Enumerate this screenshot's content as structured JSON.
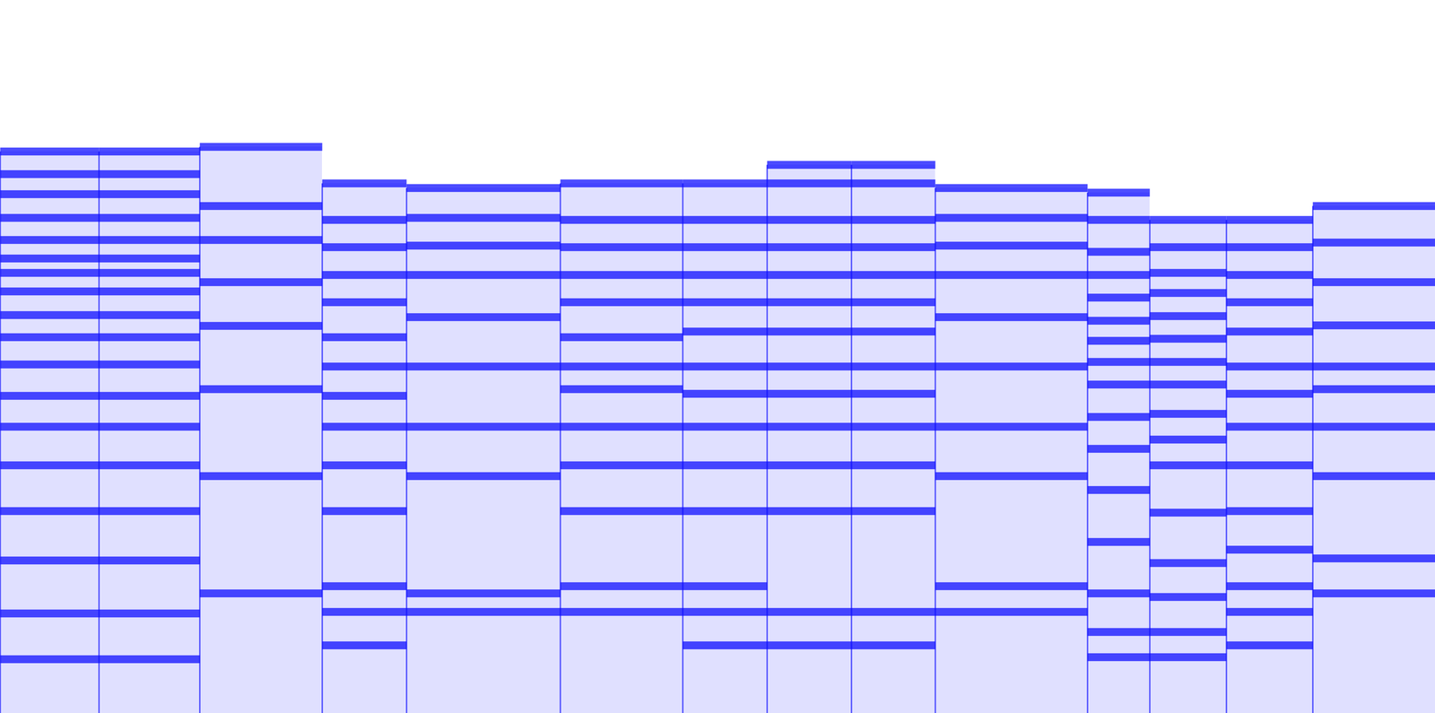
{
  "chart_data": {
    "type": "spectrogram",
    "xlim": [
      0,
      1568
    ],
    "ylim": [
      0,
      779
    ],
    "tick_labels": false,
    "color": "#0000ff",
    "notes": [
      {
        "start": 0,
        "end": 108,
        "partials": [
          59,
          109,
          167,
          221,
          271,
          313,
          347,
          381,
          411,
          435,
          461,
          481,
          497,
          517,
          541,
          567,
          589,
          614
        ]
      },
      {
        "start": 108,
        "end": 218,
        "partials": [
          59,
          109,
          167,
          221,
          271,
          313,
          347,
          381,
          411,
          435,
          461,
          481,
          497,
          517,
          541,
          567,
          589,
          614
        ]
      },
      {
        "start": 218,
        "end": 352,
        "partials": [
          131,
          259,
          354,
          423,
          471,
          517,
          554,
          619
        ]
      },
      {
        "start": 352,
        "end": 444,
        "partials": [
          74,
          111,
          139,
          221,
          271,
          313,
          347,
          379,
          411,
          449,
          479,
          509,
          539,
          579
        ]
      },
      {
        "start": 444,
        "end": 612,
        "partials": [
          111,
          131,
          259,
          313,
          379,
          433,
          479,
          511,
          541,
          574
        ]
      },
      {
        "start": 612,
        "end": 746,
        "partials": [
          111,
          139,
          221,
          271,
          313,
          354,
          379,
          411,
          449,
          479,
          509,
          539,
          579
        ]
      },
      {
        "start": 746,
        "end": 838,
        "partials": [
          74,
          111,
          139,
          221,
          271,
          313,
          349,
          379,
          417,
          449,
          479,
          509,
          539,
          579
        ]
      },
      {
        "start": 838,
        "end": 930,
        "partials": [
          74,
          111,
          221,
          271,
          313,
          349,
          379,
          417,
          449,
          479,
          509,
          539,
          579,
          599
        ]
      },
      {
        "start": 930,
        "end": 1022,
        "partials": [
          74,
          111,
          221,
          271,
          313,
          349,
          379,
          417,
          449,
          479,
          509,
          539,
          579,
          599
        ]
      },
      {
        "start": 1022,
        "end": 1188,
        "partials": [
          111,
          139,
          259,
          313,
          379,
          433,
          479,
          511,
          541,
          574
        ]
      },
      {
        "start": 1188,
        "end": 1256,
        "partials": [
          61,
          89,
          131,
          187,
          244,
          289,
          324,
          359,
          384,
          407,
          429,
          454,
          479,
          504,
          539,
          569
        ]
      },
      {
        "start": 1256,
        "end": 1340,
        "partials": [
          61,
          89,
          127,
          164,
          219,
          271,
          299,
          327,
          359,
          384,
          409,
          434,
          459,
          481,
          509,
          539
        ]
      },
      {
        "start": 1340,
        "end": 1434,
        "partials": [
          74,
          111,
          139,
          179,
          221,
          271,
          313,
          349,
          379,
          417,
          449,
          479,
          509,
          539
        ]
      },
      {
        "start": 1434,
        "end": 1568,
        "partials": [
          131,
          169,
          259,
          313,
          354,
          379,
          424,
          471,
          514,
          554
        ]
      }
    ]
  }
}
